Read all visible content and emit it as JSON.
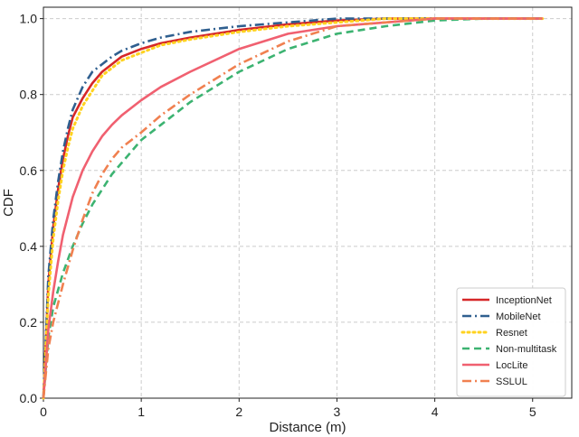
{
  "chart_data": {
    "type": "line",
    "title": "",
    "xlabel": "Distance (m)",
    "ylabel": "CDF",
    "xlim": [
      0,
      5.4
    ],
    "ylim": [
      0,
      1.03
    ],
    "xticks": [
      "0",
      "1",
      "2",
      "3",
      "4",
      "5"
    ],
    "yticks": [
      "0.0",
      "0.2",
      "0.4",
      "0.6",
      "0.8",
      "1.0"
    ],
    "grid": true,
    "legend_position": "lower-right",
    "series": [
      {
        "name": "InceptionNet",
        "color": "#d62728",
        "style": "solid",
        "x": [
          0,
          0.05,
          0.1,
          0.15,
          0.2,
          0.25,
          0.3,
          0.4,
          0.5,
          0.6,
          0.7,
          0.8,
          1.0,
          1.2,
          1.5,
          2.0,
          2.5,
          3.0,
          3.5,
          4.0,
          4.5,
          5.1
        ],
        "y": [
          0,
          0.3,
          0.45,
          0.55,
          0.63,
          0.69,
          0.74,
          0.79,
          0.83,
          0.86,
          0.88,
          0.9,
          0.92,
          0.935,
          0.95,
          0.97,
          0.985,
          0.995,
          1.0,
          1.0,
          1.0,
          1.0
        ]
      },
      {
        "name": "MobileNet",
        "color": "#2f5f8f",
        "style": "dashdot",
        "x": [
          0,
          0.05,
          0.1,
          0.15,
          0.2,
          0.25,
          0.3,
          0.4,
          0.5,
          0.6,
          0.7,
          0.8,
          1.0,
          1.2,
          1.5,
          2.0,
          2.5,
          3.0,
          3.5,
          4.0,
          4.5,
          5.1
        ],
        "y": [
          0,
          0.32,
          0.47,
          0.57,
          0.65,
          0.71,
          0.76,
          0.82,
          0.86,
          0.88,
          0.9,
          0.915,
          0.935,
          0.95,
          0.965,
          0.98,
          0.99,
          1.0,
          1.0,
          1.0,
          1.0,
          1.0
        ]
      },
      {
        "name": "Resnet",
        "color": "#ffd21f",
        "style": "dotted",
        "x": [
          0,
          0.05,
          0.1,
          0.15,
          0.2,
          0.25,
          0.3,
          0.4,
          0.5,
          0.6,
          0.7,
          0.8,
          1.0,
          1.2,
          1.5,
          2.0,
          2.5,
          3.0,
          3.5,
          4.0,
          4.5,
          5.1
        ],
        "y": [
          0,
          0.27,
          0.42,
          0.52,
          0.6,
          0.66,
          0.71,
          0.77,
          0.81,
          0.85,
          0.87,
          0.89,
          0.91,
          0.93,
          0.945,
          0.965,
          0.98,
          0.99,
          1.0,
          1.0,
          1.0,
          1.0
        ]
      },
      {
        "name": "Non-multitask",
        "color": "#3cb371",
        "style": "dashed",
        "x": [
          0,
          0.05,
          0.1,
          0.2,
          0.3,
          0.4,
          0.5,
          0.6,
          0.7,
          0.8,
          1.0,
          1.2,
          1.5,
          2.0,
          2.5,
          3.0,
          3.5,
          4.0,
          4.5,
          5.1
        ],
        "y": [
          0,
          0.16,
          0.24,
          0.33,
          0.4,
          0.46,
          0.51,
          0.55,
          0.59,
          0.62,
          0.68,
          0.72,
          0.78,
          0.86,
          0.92,
          0.96,
          0.98,
          0.995,
          1.0,
          1.0
        ]
      },
      {
        "name": "LocLite",
        "color": "#f06070",
        "style": "solid",
        "x": [
          0,
          0.05,
          0.1,
          0.15,
          0.2,
          0.3,
          0.4,
          0.5,
          0.6,
          0.7,
          0.8,
          1.0,
          1.2,
          1.5,
          2.0,
          2.5,
          3.0,
          3.5,
          4.0,
          4.5,
          5.1
        ],
        "y": [
          0,
          0.18,
          0.28,
          0.36,
          0.43,
          0.53,
          0.6,
          0.65,
          0.69,
          0.72,
          0.745,
          0.785,
          0.82,
          0.86,
          0.92,
          0.96,
          0.98,
          0.99,
          1.0,
          1.0,
          1.0
        ]
      },
      {
        "name": "SSLUL",
        "color": "#f08050",
        "style": "dashdot",
        "x": [
          0,
          0.05,
          0.1,
          0.2,
          0.3,
          0.4,
          0.5,
          0.6,
          0.7,
          0.8,
          1.0,
          1.2,
          1.5,
          2.0,
          2.5,
          3.0,
          3.5,
          4.0,
          4.5,
          5.1
        ],
        "y": [
          0,
          0.13,
          0.2,
          0.3,
          0.39,
          0.47,
          0.54,
          0.59,
          0.63,
          0.66,
          0.7,
          0.745,
          0.8,
          0.88,
          0.94,
          0.98,
          0.99,
          1.0,
          1.0,
          1.0
        ]
      }
    ]
  }
}
